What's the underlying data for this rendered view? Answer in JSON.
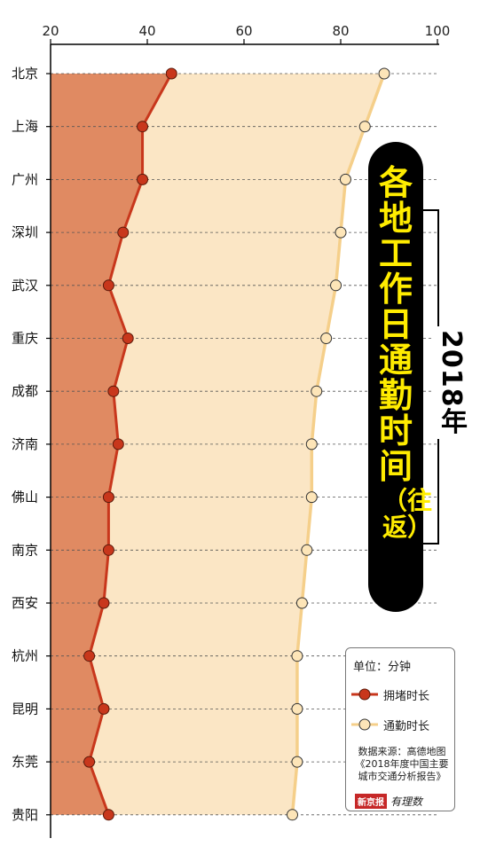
{
  "chart_data": {
    "type": "area",
    "title": "各地工作日通勤时间",
    "title_paren": "（往返）",
    "year": "2018年",
    "x_ticks": [
      20,
      40,
      60,
      80,
      100
    ],
    "xlim": [
      20,
      100
    ],
    "categories": [
      "北京",
      "上海",
      "广州",
      "深圳",
      "武汉",
      "重庆",
      "成都",
      "济南",
      "佛山",
      "南京",
      "西安",
      "杭州",
      "昆明",
      "东莞",
      "贵阳"
    ],
    "series": [
      {
        "name": "拥堵时长",
        "color": "#c8371c",
        "fill": "#e08a62",
        "values": [
          45,
          39,
          39,
          35,
          32,
          36,
          33,
          34,
          32,
          32,
          31,
          28,
          31,
          28,
          32
        ]
      },
      {
        "name": "通勤时长",
        "color": "#f5cf8a",
        "fill": "#fbe6c5",
        "values": [
          89,
          85,
          81,
          80,
          79,
          77,
          75,
          74,
          74,
          73,
          72,
          71,
          71,
          71,
          70
        ]
      }
    ],
    "grid": true,
    "legend_position": "bottom-right"
  },
  "legend": {
    "unit": "单位：分钟",
    "source": "数据来源：高德地图《2018年度中国主要城市交通分析报告》",
    "brand": "新京报",
    "brand_sub": "有理数"
  }
}
